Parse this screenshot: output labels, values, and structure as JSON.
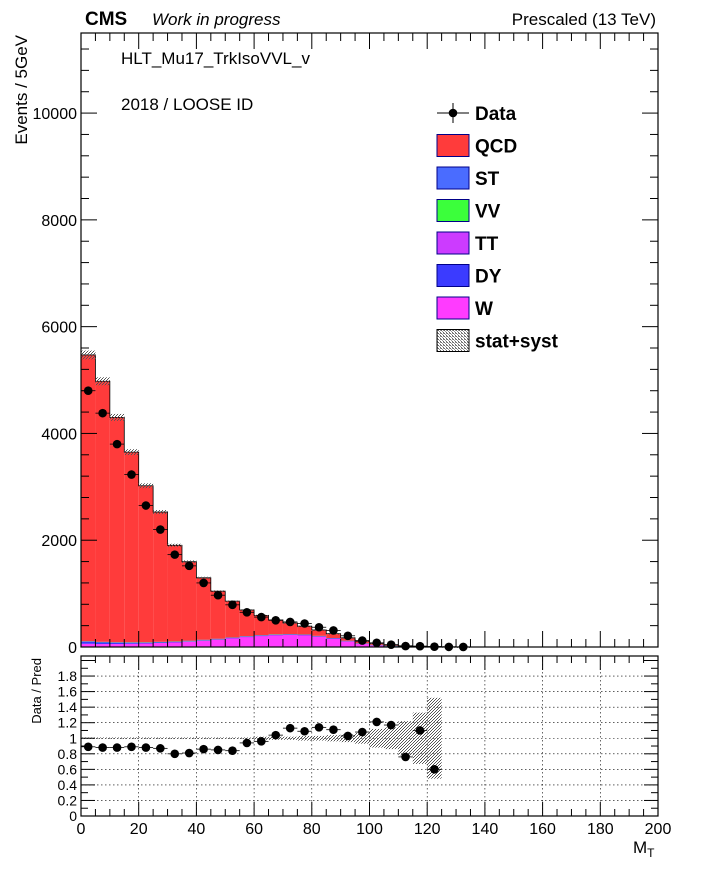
{
  "header": {
    "experiment": "CMS",
    "status": "Work in progress",
    "energy": "Prescaled (13 TeV)"
  },
  "annotations": {
    "trigger": "HLT_Mu17_TrkIsoVVL_v",
    "selection": "2018 / LOOSE ID"
  },
  "colors": {
    "QCD": "#ff3b3b",
    "ST": "#4a6cff",
    "VV": "#3bff3b",
    "TT": "#cc3bff",
    "DY": "#3b3bff",
    "W": "#ff3bff",
    "data": "#000000",
    "band": "#888888",
    "frame": "#000000"
  },
  "chart_data": [
    {
      "type": "bar",
      "stacked": true,
      "ylabel": "Events / 5GeV",
      "xlim": [
        0,
        200
      ],
      "ylim": [
        0,
        11500
      ],
      "y_ticks": [
        0,
        2000,
        4000,
        6000,
        8000,
        10000
      ],
      "bin_width": 5,
      "x": [
        2.5,
        7.5,
        12.5,
        17.5,
        22.5,
        27.5,
        32.5,
        37.5,
        42.5,
        47.5,
        52.5,
        57.5,
        62.5,
        67.5,
        72.5,
        77.5,
        82.5,
        87.5,
        92.5,
        97.5,
        102.5,
        107.5,
        112.5,
        117.5,
        122.5,
        127.5,
        132.5
      ],
      "legend": [
        "Data",
        "QCD",
        "ST",
        "VV",
        "TT",
        "DY",
        "W",
        "stat+syst"
      ],
      "legend_position": "top-right",
      "series": [
        {
          "name": "W",
          "values": [
            60,
            55,
            55,
            60,
            65,
            75,
            85,
            100,
            120,
            140,
            165,
            190,
            210,
            225,
            230,
            225,
            200,
            160,
            110,
            65,
            35,
            18,
            8,
            4,
            2,
            1,
            0
          ]
        },
        {
          "name": "DY",
          "values": [
            40,
            32,
            26,
            20,
            15,
            12,
            9,
            7,
            5,
            4,
            3,
            3,
            2,
            2,
            2,
            1,
            1,
            1,
            1,
            0,
            0,
            0,
            0,
            0,
            0,
            0,
            0
          ]
        },
        {
          "name": "TT",
          "values": [
            5,
            5,
            5,
            5,
            5,
            5,
            6,
            6,
            6,
            6,
            6,
            6,
            6,
            6,
            5,
            5,
            5,
            4,
            4,
            3,
            3,
            2,
            2,
            1,
            1,
            1,
            0
          ]
        },
        {
          "name": "VV",
          "values": [
            2,
            2,
            2,
            2,
            2,
            2,
            2,
            2,
            2,
            2,
            2,
            2,
            2,
            2,
            2,
            2,
            1,
            1,
            1,
            1,
            1,
            1,
            0,
            0,
            0,
            0,
            0
          ]
        },
        {
          "name": "ST",
          "values": [
            3,
            3,
            3,
            3,
            3,
            3,
            3,
            3,
            3,
            3,
            3,
            3,
            3,
            3,
            3,
            2,
            2,
            2,
            2,
            1,
            1,
            1,
            1,
            0,
            0,
            0,
            0
          ]
        },
        {
          "name": "QCD",
          "values": [
            5360,
            4880,
            4210,
            3560,
            2930,
            2430,
            1800,
            1480,
            1160,
            890,
            680,
            490,
            370,
            270,
            210,
            155,
            111,
            82,
            54,
            39,
            26,
            17,
            11,
            8,
            5,
            3,
            2
          ]
        },
        {
          "name": "Data",
          "values": [
            4800,
            4380,
            3800,
            3230,
            2650,
            2200,
            1730,
            1520,
            1200,
            970,
            790,
            650,
            560,
            500,
            470,
            440,
            370,
            310,
            210,
            120,
            78,
            44,
            17,
            15,
            6,
            2,
            1
          ]
        }
      ]
    },
    {
      "type": "scatter",
      "xlabel": "M_T",
      "ylabel": "Data / Pred",
      "xlim": [
        0,
        200
      ],
      "ylim": [
        0,
        2
      ],
      "y_ticks": [
        0,
        0.2,
        0.4,
        0.6,
        0.8,
        1,
        1.2,
        1.4,
        1.6,
        1.8
      ],
      "x_ticks": [
        0,
        20,
        40,
        60,
        80,
        100,
        120,
        140,
        160,
        180,
        200
      ],
      "grid": true,
      "x": [
        2.5,
        7.5,
        12.5,
        17.5,
        22.5,
        27.5,
        32.5,
        37.5,
        42.5,
        47.5,
        52.5,
        57.5,
        62.5,
        67.5,
        72.5,
        77.5,
        82.5,
        87.5,
        92.5,
        97.5,
        102.5,
        107.5,
        112.5,
        117.5,
        122.5
      ],
      "values": [
        0.89,
        0.88,
        0.88,
        0.89,
        0.88,
        0.87,
        0.8,
        0.81,
        0.86,
        0.85,
        0.84,
        0.94,
        0.96,
        1.04,
        1.13,
        1.09,
        1.14,
        1.11,
        1.03,
        1.08,
        1.21,
        1.17,
        0.76,
        1.1,
        0.6
      ],
      "band_half_width": [
        0.01,
        0.01,
        0.01,
        0.01,
        0.01,
        0.01,
        0.01,
        0.01,
        0.01,
        0.01,
        0.01,
        0.01,
        0.02,
        0.02,
        0.02,
        0.03,
        0.03,
        0.04,
        0.05,
        0.07,
        0.12,
        0.14,
        0.22,
        0.33,
        0.52
      ]
    }
  ]
}
